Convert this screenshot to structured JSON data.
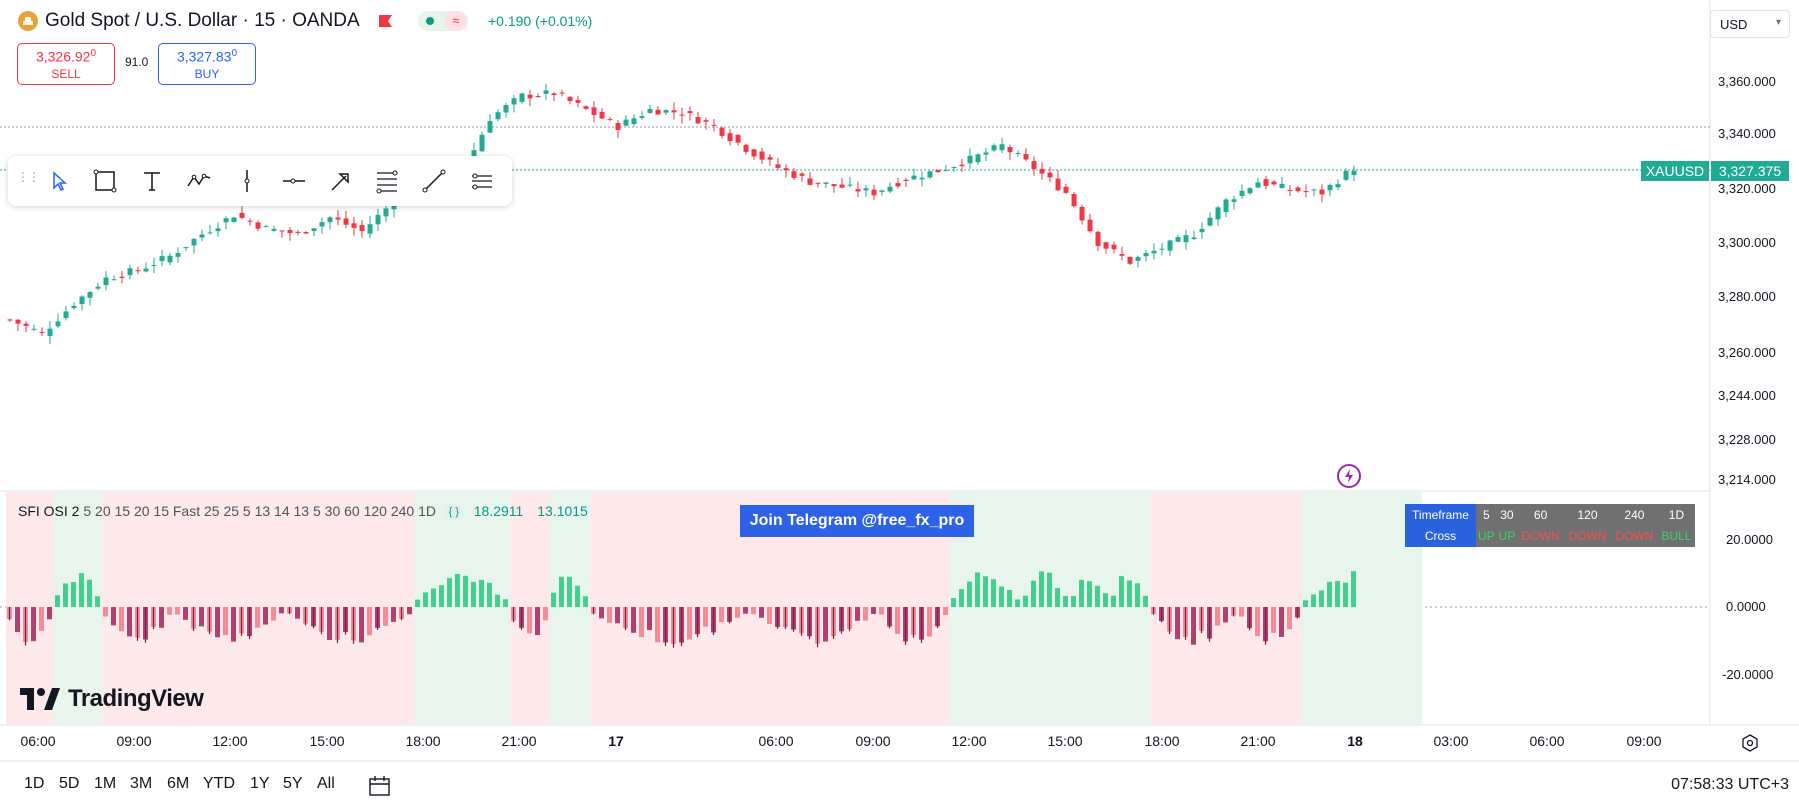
{
  "header": {
    "symbol_title": "Gold Spot / U.S. Dollar · 15 · OANDA",
    "change": "+0.190 (+0.01%)",
    "sell_price": "3,326.92",
    "sell_price_sup": "0",
    "sell_label": "SELL",
    "buy_price": "3,327.83",
    "buy_price_sup": "0",
    "buy_label": "BUY",
    "spread": "91.0",
    "currency": "USD",
    "market_pill_icon": "≈"
  },
  "price_axis": {
    "labels": [
      "3,360.000",
      "3,340.000",
      "3,320.000",
      "3,300.000",
      "3,280.000",
      "3,260.000",
      "3,244.000",
      "3,228.000",
      "3,214.000"
    ],
    "symbol_tag": "XAUUSD",
    "last_price": "3,327.375"
  },
  "time_axis": {
    "labels": [
      "06:00",
      "09:00",
      "12:00",
      "15:00",
      "18:00",
      "21:00",
      "17",
      "06:00",
      "09:00",
      "12:00",
      "15:00",
      "18:00",
      "21:00",
      "18",
      "03:00",
      "06:00",
      "09:00"
    ]
  },
  "indicator": {
    "name": "SFI OSI 2",
    "params": "5 20 15 20 15 Fast 25 25 5 13 14 13 5 30 60 120 240 1D",
    "value1": "18.2911",
    "value2": "13.1015",
    "axis_labels": [
      "20.0000",
      "0.0000",
      "-20.0000"
    ]
  },
  "banner": "Join Telegram @free_fx_pro",
  "tf_table": {
    "row1_label": "Timeframe",
    "row2_label": "Cross",
    "timeframes": [
      "5",
      "30",
      "60",
      "120",
      "240",
      "1D"
    ],
    "cross": [
      "UP",
      "UP",
      "DOWN",
      "DOWN",
      "DOWN",
      "BULL"
    ]
  },
  "branding": "TradingView",
  "bottom": {
    "ranges": [
      "1D",
      "5D",
      "1M",
      "3M",
      "6M",
      "YTD",
      "1Y",
      "5Y",
      "All"
    ],
    "clock": "07:58:33 UTC+3"
  },
  "colors": {
    "up": "#22ab94",
    "down": "#f23645",
    "accent": "#2962ff"
  },
  "toolbar_icons": [
    "cursor-icon",
    "rectangle-icon",
    "text-icon",
    "path-icon",
    "vertical-line-icon",
    "horizontal-ray-icon",
    "arrow-icon",
    "fib-retracement-icon",
    "trend-line-icon",
    "parallel-channel-icon"
  ],
  "chart_data": {
    "type": "candlestick",
    "symbol": "XAUUSD",
    "interval": "15",
    "price_range": [
      3214,
      3366
    ],
    "last_price": 3327.375,
    "close_path": [
      [
        0,
        3272
      ],
      [
        4,
        3267
      ],
      [
        8,
        3278
      ],
      [
        12,
        3287
      ],
      [
        16,
        3290
      ],
      [
        20,
        3295
      ],
      [
        24,
        3303
      ],
      [
        28,
        3310
      ],
      [
        32,
        3305
      ],
      [
        36,
        3303
      ],
      [
        40,
        3309
      ],
      [
        44,
        3304
      ],
      [
        48,
        3315
      ],
      [
        52,
        3318
      ],
      [
        56,
        3322
      ],
      [
        60,
        3345
      ],
      [
        64,
        3353
      ],
      [
        68,
        3354
      ],
      [
        72,
        3348
      ],
      [
        76,
        3342
      ],
      [
        80,
        3348
      ],
      [
        84,
        3347
      ],
      [
        88,
        3342
      ],
      [
        92,
        3334
      ],
      [
        96,
        3327
      ],
      [
        100,
        3322
      ],
      [
        104,
        3320
      ],
      [
        108,
        3318
      ],
      [
        112,
        3323
      ],
      [
        116,
        3326
      ],
      [
        120,
        3330
      ],
      [
        124,
        3335
      ],
      [
        128,
        3327
      ],
      [
        132,
        3318
      ],
      [
        136,
        3300
      ],
      [
        140,
        3293
      ],
      [
        144,
        3298
      ],
      [
        148,
        3303
      ],
      [
        152,
        3315
      ],
      [
        156,
        3322
      ],
      [
        160,
        3319
      ],
      [
        164,
        3318
      ],
      [
        168,
        3327
      ]
    ],
    "osi_regimes": [
      [
        "down",
        6
      ],
      [
        "up",
        6
      ],
      [
        "down",
        9
      ],
      [
        "down",
        14
      ],
      [
        "down",
        16
      ],
      [
        "up",
        12
      ],
      [
        "down",
        5
      ],
      [
        "up",
        5
      ],
      [
        "down",
        20
      ],
      [
        "down",
        16
      ],
      [
        "down",
        9
      ],
      [
        "up",
        9
      ],
      [
        "up",
        6
      ],
      [
        "up",
        5
      ],
      [
        "up",
        5
      ],
      [
        "down",
        11
      ],
      [
        "down",
        8
      ],
      [
        "up",
        15
      ],
      [
        "up",
        6
      ],
      [
        "up",
        2
      ]
    ]
  }
}
